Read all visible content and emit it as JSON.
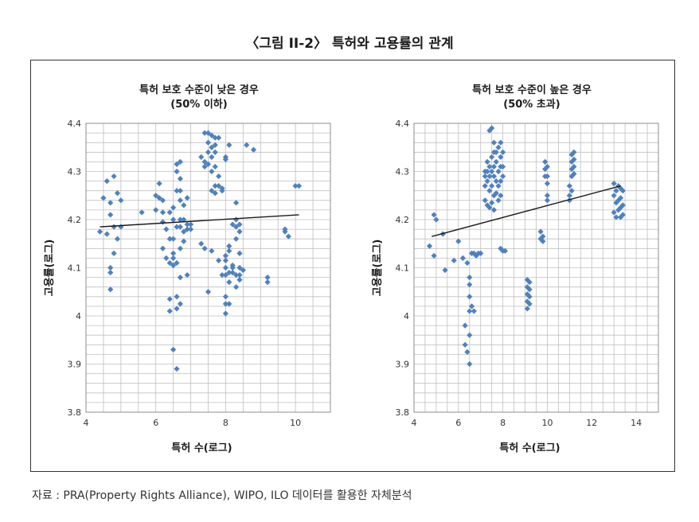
{
  "figure_title": "〈그림 II-2〉 특허와 고용률의 관계",
  "source_note": "자료 : PRA(Property Rights Alliance), WIPO, ILO 데이터를 활용한 자체분석",
  "colors": {
    "marker": "#4f81bd",
    "grid": "#bfbfbf",
    "trend": "#1a1a1a"
  },
  "chart_data": [
    {
      "type": "scatter",
      "title": "특허 보호 수준이 낮은 경우",
      "subtitle": "(50% 이하)",
      "xlabel": "특허 수(로그)",
      "ylabel": "고용률(로그)",
      "xlim": [
        4,
        11
      ],
      "ylim": [
        3.8,
        4.4
      ],
      "x_ticks": [
        4,
        6,
        8,
        10
      ],
      "y_ticks": [
        3.8,
        3.9,
        4,
        4.1,
        4.2,
        4.3,
        4.4
      ],
      "x_tick_labels": [
        "4",
        "6",
        "8",
        "10"
      ],
      "y_tick_labels": [
        "3.8",
        "3.9",
        "4",
        "4.1",
        "4.2",
        "4.3",
        "4.4"
      ],
      "grid_step": {
        "x": 0.5,
        "y": 0.02
      },
      "trendline": {
        "x": [
          4.4,
          10.1
        ],
        "y": [
          4.185,
          4.21
        ]
      },
      "points": [
        [
          4.4,
          4.175
        ],
        [
          4.5,
          4.245
        ],
        [
          4.6,
          4.28
        ],
        [
          4.6,
          4.17
        ],
        [
          4.7,
          4.235
        ],
        [
          4.7,
          4.21
        ],
        [
          4.7,
          4.1
        ],
        [
          4.7,
          4.09
        ],
        [
          4.7,
          4.055
        ],
        [
          4.8,
          4.29
        ],
        [
          4.8,
          4.185
        ],
        [
          4.8,
          4.13
        ],
        [
          4.9,
          4.255
        ],
        [
          4.9,
          4.16
        ],
        [
          5.0,
          4.24
        ],
        [
          5.0,
          4.185
        ],
        [
          5.6,
          4.215
        ],
        [
          6.0,
          4.22
        ],
        [
          6.0,
          4.25
        ],
        [
          6.1,
          4.245
        ],
        [
          6.1,
          4.275
        ],
        [
          6.2,
          4.24
        ],
        [
          6.2,
          4.215
        ],
        [
          6.2,
          4.195
        ],
        [
          6.2,
          4.14
        ],
        [
          6.3,
          4.18
        ],
        [
          6.3,
          4.12
        ],
        [
          6.4,
          4.215
        ],
        [
          6.4,
          4.16
        ],
        [
          6.4,
          4.11
        ],
        [
          6.4,
          4.035
        ],
        [
          6.4,
          4.01
        ],
        [
          6.5,
          4.225
        ],
        [
          6.5,
          4.2
        ],
        [
          6.5,
          4.16
        ],
        [
          6.5,
          4.13
        ],
        [
          6.5,
          4.12
        ],
        [
          6.5,
          4.105
        ],
        [
          6.5,
          3.93
        ],
        [
          6.6,
          4.315
        ],
        [
          6.6,
          4.3
        ],
        [
          6.6,
          4.26
        ],
        [
          6.6,
          4.185
        ],
        [
          6.6,
          4.11
        ],
        [
          6.6,
          4.04
        ],
        [
          6.6,
          4.015
        ],
        [
          6.6,
          3.89
        ],
        [
          6.7,
          4.32
        ],
        [
          6.7,
          4.285
        ],
        [
          6.7,
          4.26
        ],
        [
          6.7,
          4.24
        ],
        [
          6.7,
          4.2
        ],
        [
          6.7,
          4.185
        ],
        [
          6.7,
          4.14
        ],
        [
          6.7,
          4.08
        ],
        [
          6.7,
          4.025
        ],
        [
          6.8,
          4.23
        ],
        [
          6.8,
          4.2
        ],
        [
          6.8,
          4.175
        ],
        [
          6.8,
          4.155
        ],
        [
          6.9,
          4.245
        ],
        [
          6.9,
          4.19
        ],
        [
          6.9,
          4.18
        ],
        [
          6.9,
          4.085
        ],
        [
          7.0,
          4.19
        ],
        [
          7.0,
          4.18
        ],
        [
          7.3,
          4.15
        ],
        [
          7.3,
          4.33
        ],
        [
          7.4,
          4.38
        ],
        [
          7.4,
          4.32
        ],
        [
          7.4,
          4.31
        ],
        [
          7.4,
          4.14
        ],
        [
          7.5,
          4.38
        ],
        [
          7.5,
          4.36
        ],
        [
          7.5,
          4.34
        ],
        [
          7.5,
          4.315
        ],
        [
          7.5,
          4.05
        ],
        [
          7.6,
          4.375
        ],
        [
          7.6,
          4.35
        ],
        [
          7.6,
          4.33
        ],
        [
          7.6,
          4.3
        ],
        [
          7.6,
          4.26
        ],
        [
          7.6,
          4.135
        ],
        [
          7.7,
          4.37
        ],
        [
          7.7,
          4.355
        ],
        [
          7.7,
          4.34
        ],
        [
          7.7,
          4.31
        ],
        [
          7.7,
          4.27
        ],
        [
          7.7,
          4.255
        ],
        [
          7.8,
          4.37
        ],
        [
          7.8,
          4.29
        ],
        [
          7.8,
          4.27
        ],
        [
          7.8,
          4.115
        ],
        [
          7.9,
          4.265
        ],
        [
          7.9,
          4.26
        ],
        [
          7.9,
          4.085
        ],
        [
          8.0,
          4.33
        ],
        [
          8.0,
          4.325
        ],
        [
          8.0,
          4.125
        ],
        [
          8.0,
          4.115
        ],
        [
          8.0,
          4.1
        ],
        [
          8.0,
          4.085
        ],
        [
          8.0,
          4.04
        ],
        [
          8.0,
          4.025
        ],
        [
          8.0,
          4.005
        ],
        [
          8.1,
          4.355
        ],
        [
          8.1,
          4.145
        ],
        [
          8.1,
          4.135
        ],
        [
          8.1,
          4.09
        ],
        [
          8.1,
          4.07
        ],
        [
          8.1,
          4.025
        ],
        [
          8.2,
          4.19
        ],
        [
          8.2,
          4.105
        ],
        [
          8.2,
          4.1
        ],
        [
          8.2,
          4.09
        ],
        [
          8.3,
          4.235
        ],
        [
          8.3,
          4.2
        ],
        [
          8.3,
          4.185
        ],
        [
          8.3,
          4.16
        ],
        [
          8.3,
          4.085
        ],
        [
          8.3,
          4.06
        ],
        [
          8.4,
          4.19
        ],
        [
          8.4,
          4.175
        ],
        [
          8.4,
          4.13
        ],
        [
          8.4,
          4.1
        ],
        [
          8.4,
          4.085
        ],
        [
          8.4,
          4.075
        ],
        [
          8.5,
          4.095
        ],
        [
          8.6,
          4.355
        ],
        [
          8.8,
          4.345
        ],
        [
          9.2,
          4.08
        ],
        [
          9.2,
          4.07
        ],
        [
          9.7,
          4.18
        ],
        [
          9.7,
          4.175
        ],
        [
          9.8,
          4.165
        ],
        [
          10.0,
          4.27
        ],
        [
          10.1,
          4.27
        ]
      ]
    },
    {
      "type": "scatter",
      "title": "특허 보호 수준이 높은 경우",
      "subtitle": "(50% 초과)",
      "xlabel": "특허 수(로그)",
      "ylabel": "고용률(로그)",
      "xlim": [
        4,
        15
      ],
      "ylim": [
        3.8,
        4.4
      ],
      "x_ticks": [
        4,
        6,
        8,
        10,
        12,
        14
      ],
      "y_ticks": [
        3.8,
        3.9,
        4,
        4.1,
        4.2,
        4.3,
        4.4
      ],
      "x_tick_labels": [
        "4",
        "6",
        "8",
        "10",
        "12",
        "14"
      ],
      "y_tick_labels": [
        "3.8",
        "3.9",
        "4",
        "4.1",
        "4.2",
        "4.3",
        "4.4"
      ],
      "grid_step": {
        "x": 0.5,
        "y": 0.02
      },
      "trendline": {
        "x": [
          4.8,
          13.3
        ],
        "y": [
          4.165,
          4.27
        ]
      },
      "points": [
        [
          4.7,
          4.145
        ],
        [
          4.9,
          4.21
        ],
        [
          4.9,
          4.125
        ],
        [
          5.0,
          4.2
        ],
        [
          5.3,
          4.17
        ],
        [
          5.4,
          4.095
        ],
        [
          5.8,
          4.115
        ],
        [
          6.0,
          4.155
        ],
        [
          6.2,
          4.12
        ],
        [
          6.3,
          3.98
        ],
        [
          6.3,
          3.94
        ],
        [
          6.4,
          4.11
        ],
        [
          6.4,
          3.925
        ],
        [
          6.5,
          4.08
        ],
        [
          6.5,
          4.065
        ],
        [
          6.5,
          4.04
        ],
        [
          6.5,
          4.01
        ],
        [
          6.5,
          3.96
        ],
        [
          6.5,
          3.9
        ],
        [
          6.6,
          4.13
        ],
        [
          6.6,
          4.02
        ],
        [
          6.7,
          4.13
        ],
        [
          6.7,
          4.01
        ],
        [
          6.8,
          4.125
        ],
        [
          6.9,
          4.13
        ],
        [
          7.0,
          4.13
        ],
        [
          7.2,
          4.3
        ],
        [
          7.2,
          4.29
        ],
        [
          7.2,
          4.27
        ],
        [
          7.2,
          4.24
        ],
        [
          7.3,
          4.32
        ],
        [
          7.3,
          4.3
        ],
        [
          7.3,
          4.28
        ],
        [
          7.3,
          4.23
        ],
        [
          7.4,
          4.385
        ],
        [
          7.4,
          4.31
        ],
        [
          7.4,
          4.29
        ],
        [
          7.4,
          4.26
        ],
        [
          7.4,
          4.225
        ],
        [
          7.5,
          4.39
        ],
        [
          7.5,
          4.33
        ],
        [
          7.5,
          4.3
        ],
        [
          7.5,
          4.27
        ],
        [
          7.5,
          4.235
        ],
        [
          7.6,
          4.36
        ],
        [
          7.6,
          4.34
        ],
        [
          7.6,
          4.31
        ],
        [
          7.6,
          4.29
        ],
        [
          7.6,
          4.25
        ],
        [
          7.6,
          4.22
        ],
        [
          7.7,
          4.34
        ],
        [
          7.7,
          4.32
        ],
        [
          7.7,
          4.28
        ],
        [
          7.7,
          4.255
        ],
        [
          7.8,
          4.35
        ],
        [
          7.8,
          4.3
        ],
        [
          7.8,
          4.27
        ],
        [
          7.8,
          4.24
        ],
        [
          7.9,
          4.36
        ],
        [
          7.9,
          4.33
        ],
        [
          7.9,
          4.31
        ],
        [
          7.9,
          4.28
        ],
        [
          7.9,
          4.25
        ],
        [
          7.9,
          4.14
        ],
        [
          8.0,
          4.34
        ],
        [
          8.0,
          4.31
        ],
        [
          8.0,
          4.29
        ],
        [
          8.0,
          4.135
        ],
        [
          8.1,
          4.135
        ],
        [
          9.1,
          4.075
        ],
        [
          9.1,
          4.06
        ],
        [
          9.1,
          4.045
        ],
        [
          9.1,
          4.03
        ],
        [
          9.1,
          4.015
        ],
        [
          9.2,
          4.07
        ],
        [
          9.2,
          4.055
        ],
        [
          9.2,
          4.04
        ],
        [
          9.2,
          4.025
        ],
        [
          9.7,
          4.175
        ],
        [
          9.7,
          4.16
        ],
        [
          9.8,
          4.165
        ],
        [
          9.8,
          4.155
        ],
        [
          9.9,
          4.32
        ],
        [
          9.9,
          4.305
        ],
        [
          9.9,
          4.29
        ],
        [
          10.0,
          4.31
        ],
        [
          10.0,
          4.29
        ],
        [
          10.0,
          4.275
        ],
        [
          10.0,
          4.25
        ],
        [
          10.0,
          4.24
        ],
        [
          11.0,
          4.27
        ],
        [
          11.0,
          4.25
        ],
        [
          11.0,
          4.24
        ],
        [
          11.1,
          4.335
        ],
        [
          11.1,
          4.32
        ],
        [
          11.1,
          4.305
        ],
        [
          11.1,
          4.29
        ],
        [
          11.1,
          4.26
        ],
        [
          11.2,
          4.34
        ],
        [
          11.2,
          4.325
        ],
        [
          11.2,
          4.31
        ],
        [
          11.2,
          4.295
        ],
        [
          13.0,
          4.275
        ],
        [
          13.0,
          4.25
        ],
        [
          13.0,
          4.215
        ],
        [
          13.1,
          4.26
        ],
        [
          13.1,
          4.235
        ],
        [
          13.1,
          4.205
        ],
        [
          13.2,
          4.27
        ],
        [
          13.2,
          4.24
        ],
        [
          13.2,
          4.22
        ],
        [
          13.3,
          4.265
        ],
        [
          13.3,
          4.245
        ],
        [
          13.3,
          4.225
        ],
        [
          13.3,
          4.205
        ],
        [
          13.4,
          4.26
        ],
        [
          13.4,
          4.23
        ],
        [
          13.4,
          4.21
        ]
      ]
    }
  ]
}
